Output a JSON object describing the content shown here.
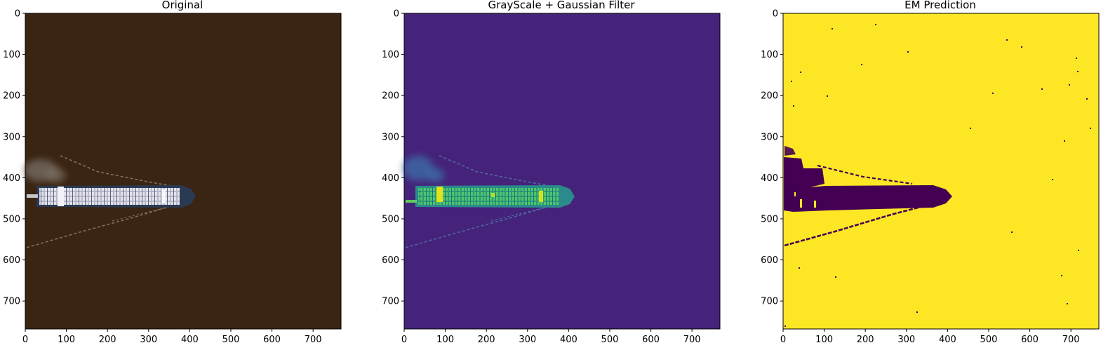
{
  "figure": {
    "panels": [
      {
        "title": "Original",
        "image": "satellite photo: container ship leaving a wake and exhaust plume on dark brown water",
        "colors": {
          "background": "#3a2412",
          "ship_deck": "#c9c9d6",
          "ship_hull": "#2a3a52",
          "wake": "#8f7f72",
          "smoke": "#7a6f66"
        }
      },
      {
        "title": "GrayScale + Gaussian Filter",
        "image": "viridis colormap of grayscale smoothed image: bright green/yellow ship over purple water",
        "colors": {
          "background": "#45237a",
          "ship_deck": "#3fc07a",
          "ship_bright": "#e2e31a",
          "ship_hull": "#2a8a8c",
          "wake": "#4e6aa0",
          "smoke": "#3e6aa6"
        }
      },
      {
        "title": "EM Prediction",
        "image": "binary segmentation mask: dark purple ship and wake on yellow background",
        "colors": {
          "background": "#fde725",
          "foreground": "#440154"
        }
      }
    ],
    "x_ticks": [
      "0",
      "100",
      "200",
      "300",
      "400",
      "500",
      "600",
      "700"
    ],
    "y_ticks": [
      "0",
      "100",
      "200",
      "300",
      "400",
      "500",
      "600",
      "700"
    ],
    "axis_range": {
      "x": [
        0,
        768
      ],
      "y": [
        768,
        0
      ]
    }
  }
}
